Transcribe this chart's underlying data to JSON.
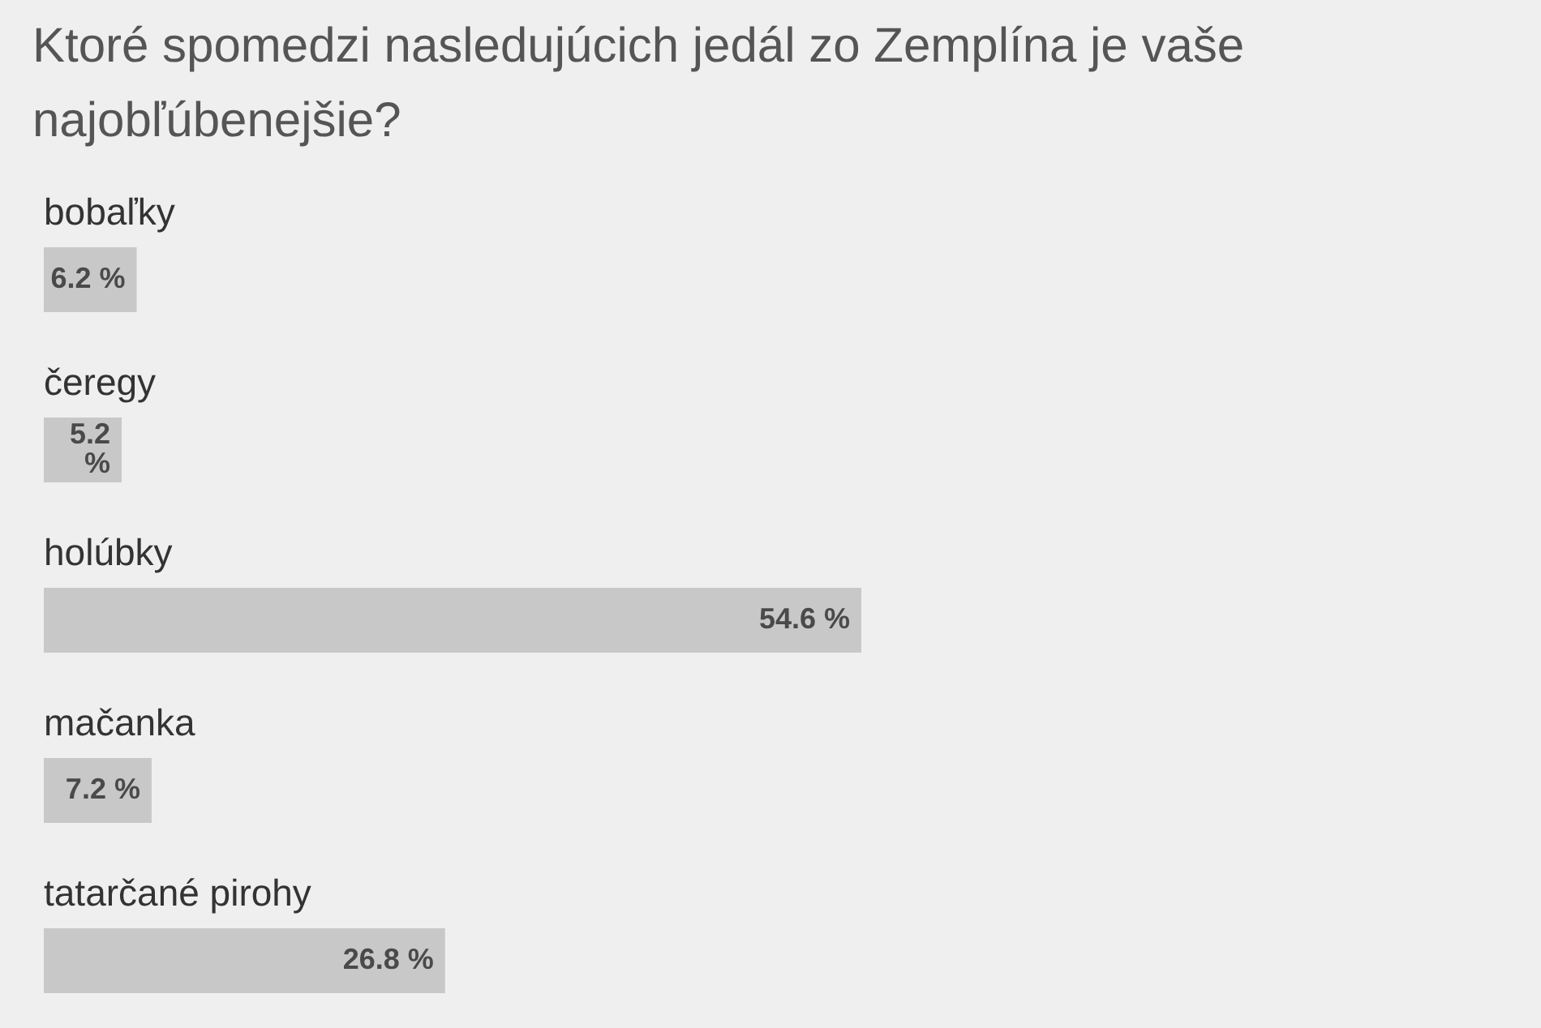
{
  "chart_data": {
    "type": "bar",
    "orientation": "horizontal",
    "title": "Ktoré spomedzi nasledujúcich jedál zo Zemplína je vaše najobľúbenejšie?",
    "categories": [
      "bobaľky",
      "čeregy",
      "holúbky",
      "mačanka",
      "tatarčané pirohy"
    ],
    "values": [
      6.2,
      5.2,
      54.6,
      7.2,
      26.8
    ],
    "value_labels": [
      "6.2 %",
      "5.2 %",
      "54.6 %",
      "7.2 %",
      "26.8 %"
    ],
    "color": "#c8c8c8"
  }
}
